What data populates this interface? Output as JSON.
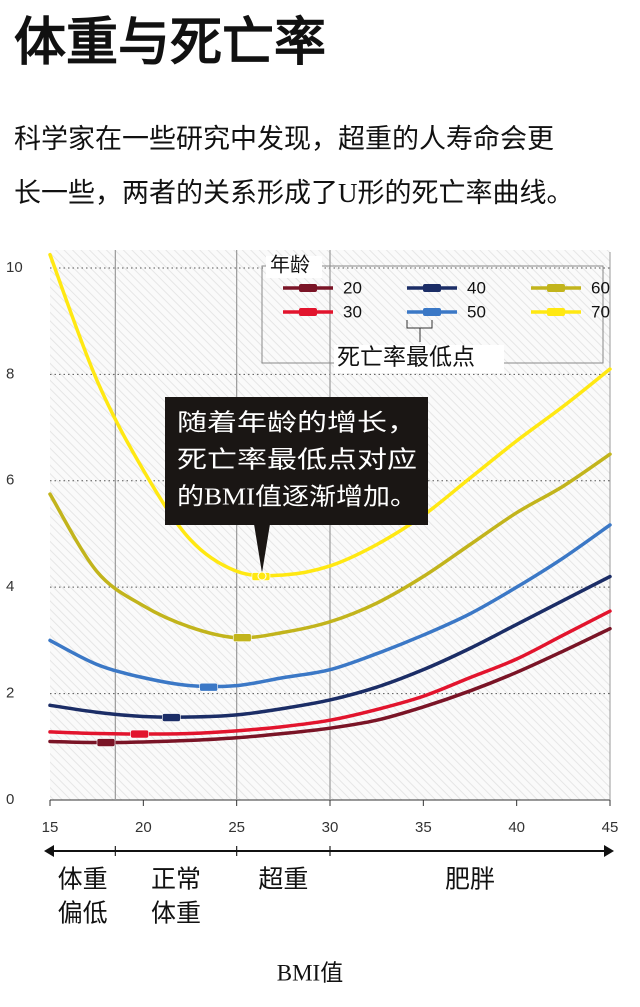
{
  "chart_data": {
    "type": "line",
    "title": "体重与死亡率",
    "subtitle": [
      "科学家在一些研究中发现，超重的人寿命会更",
      "长一些，两者的关系形成了U形的死亡率曲线。"
    ],
    "x_label": "BMI值",
    "x": [
      15,
      17.5,
      20,
      22.5,
      25,
      27.5,
      30,
      32.5,
      35,
      37.5,
      40,
      42.5,
      45
    ],
    "xlim": [
      15,
      45
    ],
    "xticks": [
      15,
      20,
      25,
      30,
      35,
      40,
      45
    ],
    "ylim": [
      0,
      10.3
    ],
    "yticks": [
      0,
      2,
      4,
      6,
      8,
      10
    ],
    "grid": true,
    "ref_lines": [
      18.5,
      25,
      30
    ],
    "bands": [
      {
        "from": 15,
        "to": 18.5,
        "label": [
          "体重",
          "偏低"
        ]
      },
      {
        "from": 18.5,
        "to": 25,
        "label": [
          "正常",
          "体重"
        ]
      },
      {
        "from": 25,
        "to": 30,
        "label": [
          "超重"
        ]
      },
      {
        "from": 30,
        "to": 45,
        "label": [
          "肥胖"
        ]
      }
    ],
    "legend_title": "年龄",
    "min_label": "死亡率最低点",
    "annotation": [
      "随着年龄的增长，",
      "死亡率最低点对应",
      "的BMI值逐渐增加。"
    ],
    "series": [
      {
        "name": "20",
        "color": "#7a1426",
        "values": [
          1.1,
          1.08,
          1.09,
          1.12,
          1.17,
          1.25,
          1.35,
          1.5,
          1.75,
          2.05,
          2.4,
          2.8,
          3.22
        ],
        "min_x": 18,
        "min_y": 1.08
      },
      {
        "name": "30",
        "color": "#e2142d",
        "values": [
          1.28,
          1.25,
          1.24,
          1.25,
          1.3,
          1.38,
          1.5,
          1.7,
          1.95,
          2.3,
          2.65,
          3.1,
          3.55
        ],
        "min_x": 19.8,
        "min_y": 1.24
      },
      {
        "name": "40",
        "color": "#1b2d66",
        "values": [
          1.78,
          1.65,
          1.57,
          1.56,
          1.6,
          1.72,
          1.88,
          2.12,
          2.45,
          2.85,
          3.3,
          3.75,
          4.2
        ],
        "min_x": 21.5,
        "min_y": 1.55
      },
      {
        "name": "50",
        "color": "#3b78c6",
        "values": [
          3.0,
          2.55,
          2.3,
          2.15,
          2.15,
          2.3,
          2.45,
          2.75,
          3.1,
          3.5,
          4.0,
          4.55,
          5.17
        ],
        "min_x": 23.5,
        "min_y": 2.12
      },
      {
        "name": "60",
        "color": "#c2b41c",
        "values": [
          5.75,
          4.3,
          3.65,
          3.25,
          3.05,
          3.15,
          3.35,
          3.7,
          4.2,
          4.8,
          5.4,
          5.9,
          6.5
        ],
        "min_x": 25.3,
        "min_y": 3.05
      },
      {
        "name": "70",
        "color": "#ffe812",
        "values": [
          10.25,
          7.9,
          6.2,
          4.9,
          4.3,
          4.23,
          4.4,
          4.8,
          5.35,
          6.05,
          6.75,
          7.4,
          8.1
        ],
        "min_x": 26.3,
        "min_y": 4.2
      }
    ]
  }
}
